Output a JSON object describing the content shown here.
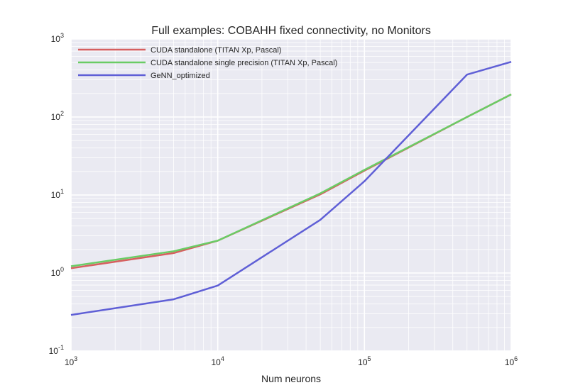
{
  "chart_data": {
    "type": "line",
    "title": "Full examples: COBAHH fixed connectivity, no Monitors",
    "xlabel": "Num neurons",
    "ylabel": "",
    "xscale": "log",
    "yscale": "log",
    "xlim": [
      1000,
      1000000
    ],
    "ylim": [
      0.1,
      1000
    ],
    "grid": true,
    "legend_position": "top-left",
    "x_ticks": [
      {
        "value": 1000,
        "base": "10",
        "exp": "3"
      },
      {
        "value": 10000,
        "base": "10",
        "exp": "4"
      },
      {
        "value": 100000,
        "base": "10",
        "exp": "5"
      },
      {
        "value": 1000000,
        "base": "10",
        "exp": "6"
      }
    ],
    "y_ticks": [
      {
        "value": 0.1,
        "base": "10",
        "exp": "-1"
      },
      {
        "value": 1,
        "base": "10",
        "exp": "0"
      },
      {
        "value": 10,
        "base": "10",
        "exp": "1"
      },
      {
        "value": 100,
        "base": "10",
        "exp": "2"
      },
      {
        "value": 1000,
        "base": "10",
        "exp": "3"
      }
    ],
    "series": [
      {
        "name": "CUDA standalone (TITAN Xp, Pascal)",
        "color": "#d65f5f",
        "x": [
          1000,
          5000,
          10000,
          50000,
          100000,
          500000,
          1000000
        ],
        "y": [
          1.15,
          1.8,
          2.6,
          10.2,
          20.5,
          100,
          195
        ]
      },
      {
        "name": "CUDA standalone single precision (TITAN Xp, Pascal)",
        "color": "#6acc65",
        "x": [
          1000,
          5000,
          10000,
          50000,
          100000,
          500000,
          1000000
        ],
        "y": [
          1.22,
          1.9,
          2.6,
          10.5,
          21,
          100,
          195
        ]
      },
      {
        "name": "GeNN_optimized",
        "color": "#5f5fd6",
        "x": [
          1000,
          5000,
          10000,
          50000,
          100000,
          500000,
          1000000
        ],
        "y": [
          0.29,
          0.46,
          0.69,
          4.8,
          15,
          350,
          510
        ]
      }
    ]
  }
}
